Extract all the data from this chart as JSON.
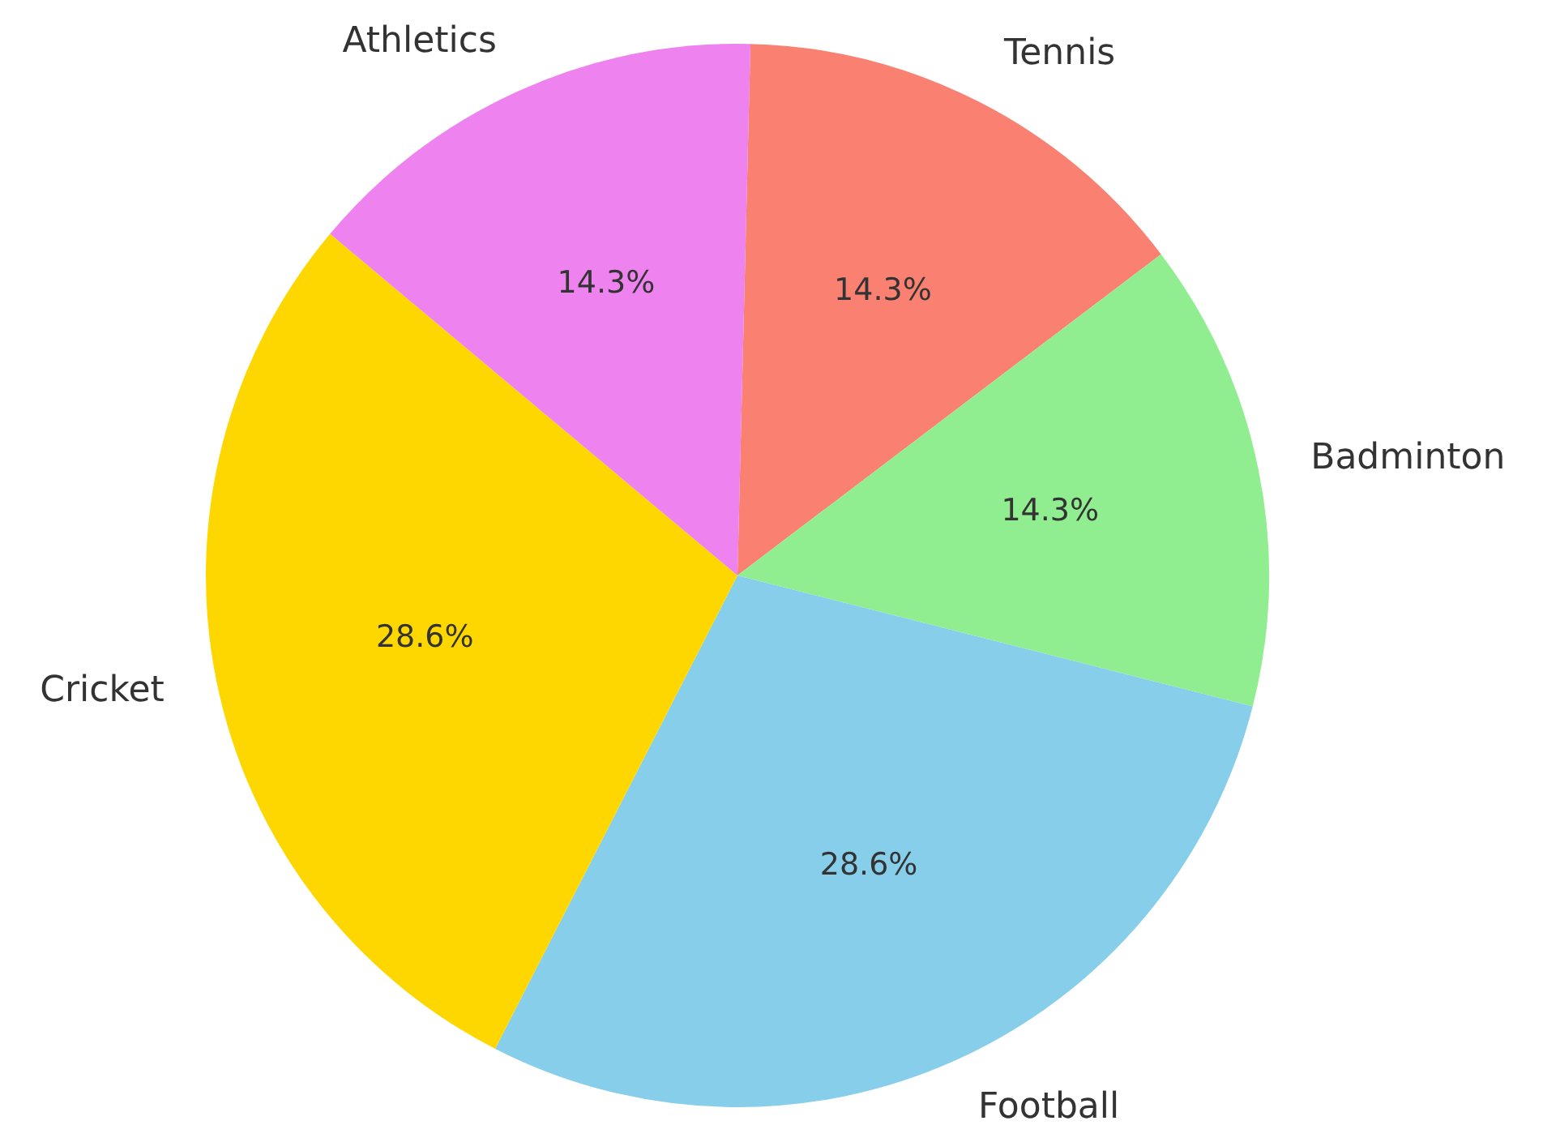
{
  "chart_data": {
    "type": "pie",
    "categories": [
      "Tennis",
      "Badminton",
      "Football",
      "Cricket",
      "Athletics"
    ],
    "values": [
      14.286,
      14.286,
      28.571,
      28.571,
      14.286
    ],
    "value_labels": [
      "14.3%",
      "14.3%",
      "28.6%",
      "28.6%",
      "14.3%"
    ],
    "colors": [
      "#fa8072",
      "#90ee90",
      "#87ceeb",
      "#ffd700",
      "#ee82ee"
    ],
    "legend": false
  }
}
